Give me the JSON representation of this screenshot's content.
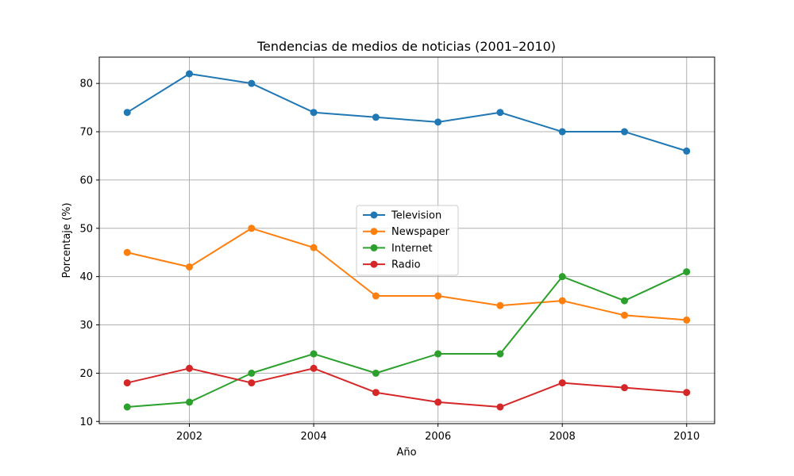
{
  "chart_data": {
    "type": "line",
    "title": "Tendencias de medios de noticias (2001–2010)",
    "xlabel": "Año",
    "ylabel": "Porcentaje (%)",
    "x": [
      2001,
      2002,
      2003,
      2004,
      2005,
      2006,
      2007,
      2008,
      2009,
      2010
    ],
    "xlim": [
      2000.55,
      2010.45
    ],
    "ylim": [
      9.55,
      85.45
    ],
    "xticks": [
      2002,
      2004,
      2006,
      2008,
      2010
    ],
    "yticks": [
      10,
      20,
      30,
      40,
      50,
      60,
      70,
      80
    ],
    "grid": true,
    "legend_position": "center",
    "series": [
      {
        "name": "Television",
        "color": "#1f77b4",
        "values": [
          74,
          82,
          80,
          74,
          73,
          72,
          74,
          70,
          70,
          66
        ]
      },
      {
        "name": "Newspaper",
        "color": "#ff7f0e",
        "values": [
          45,
          42,
          50,
          46,
          36,
          36,
          34,
          35,
          32,
          31
        ]
      },
      {
        "name": "Internet",
        "color": "#2ca02c",
        "values": [
          13,
          14,
          20,
          24,
          20,
          24,
          24,
          40,
          35,
          41
        ]
      },
      {
        "name": "Radio",
        "color": "#d62728",
        "values": [
          18,
          21,
          18,
          21,
          16,
          14,
          13,
          18,
          17,
          16
        ]
      }
    ]
  }
}
